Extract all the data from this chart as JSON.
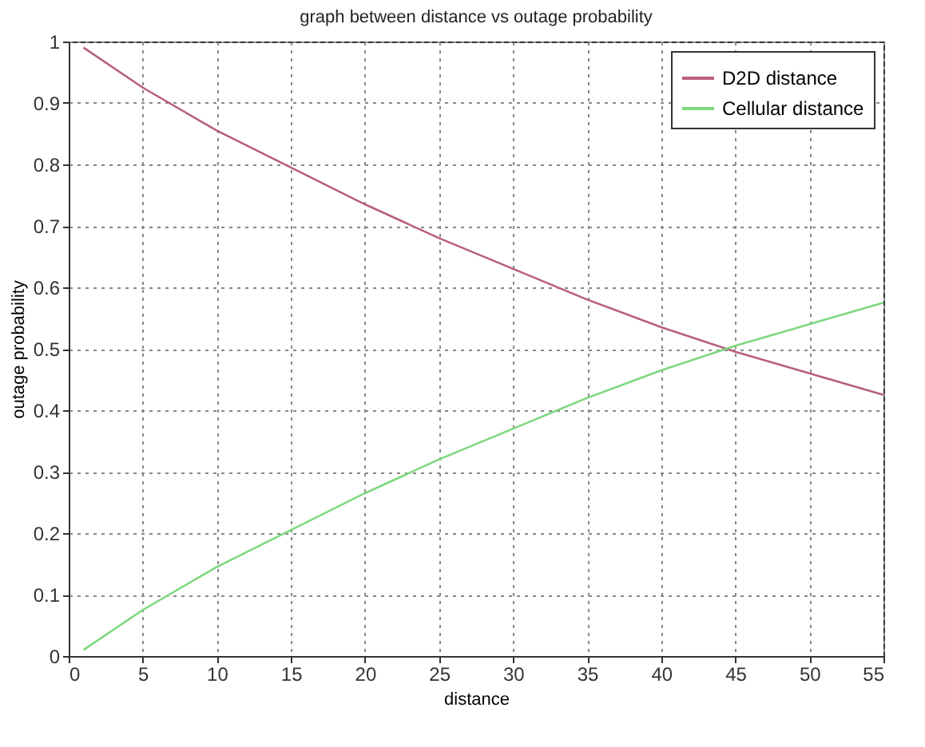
{
  "chart_data": {
    "type": "line",
    "title": "graph between distance vs outage probability",
    "xlabel": "distance",
    "ylabel": "outage probability",
    "x": [
      1,
      5,
      10,
      15,
      20,
      25,
      30,
      35,
      40,
      45,
      50,
      55
    ],
    "series": [
      {
        "name": "D2D distance",
        "color": "#b8607a",
        "values": [
          0.99,
          0.925,
          0.855,
          0.795,
          0.735,
          0.68,
          0.63,
          0.58,
          0.535,
          0.495,
          0.46,
          0.425
        ]
      },
      {
        "name": "Cellular distance",
        "color": "#7ed87e",
        "values": [
          0.01,
          0.075,
          0.145,
          0.205,
          0.265,
          0.32,
          0.37,
          0.42,
          0.465,
          0.505,
          0.54,
          0.575
        ]
      }
    ],
    "xlim": [
      0,
      55
    ],
    "xticks": [
      0,
      5,
      10,
      15,
      20,
      25,
      30,
      35,
      40,
      45,
      50,
      55
    ],
    "ylim": [
      0,
      1
    ],
    "yticks": [
      0,
      0.1,
      0.2,
      0.3,
      0.4,
      0.5,
      0.6,
      0.7,
      0.8,
      0.9,
      1
    ],
    "grid": true,
    "legend": "top right",
    "line_style": "solid",
    "marker": "none"
  }
}
